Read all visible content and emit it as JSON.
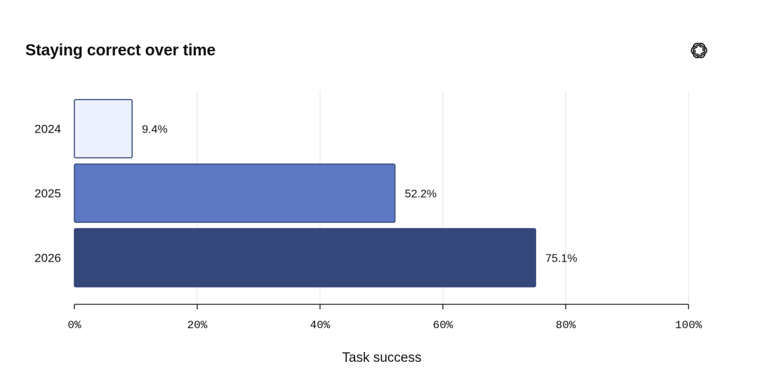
{
  "chart_data": {
    "type": "bar",
    "orientation": "horizontal",
    "title": "Staying correct over time",
    "xlabel": "Task success",
    "ylabel": "",
    "categories": [
      "2024",
      "2025",
      "2026"
    ],
    "values": [
      9.4,
      52.2,
      75.1
    ],
    "value_labels": [
      "9.4%",
      "52.2%",
      "75.1%"
    ],
    "xlim": [
      0,
      100
    ],
    "x_ticks": [
      0,
      20,
      40,
      60,
      80,
      100
    ],
    "x_tick_labels": [
      "0%",
      "20%",
      "40%",
      "60%",
      "80%",
      "100%"
    ],
    "grid": "vertical",
    "bar_colors": [
      "#ecf1fd",
      "#5d77c2",
      "#34477a"
    ],
    "bar_edge_color": "#34477a",
    "grid_color": "#e3e3e3"
  },
  "logo": {
    "icon": "openai-logo-icon"
  }
}
